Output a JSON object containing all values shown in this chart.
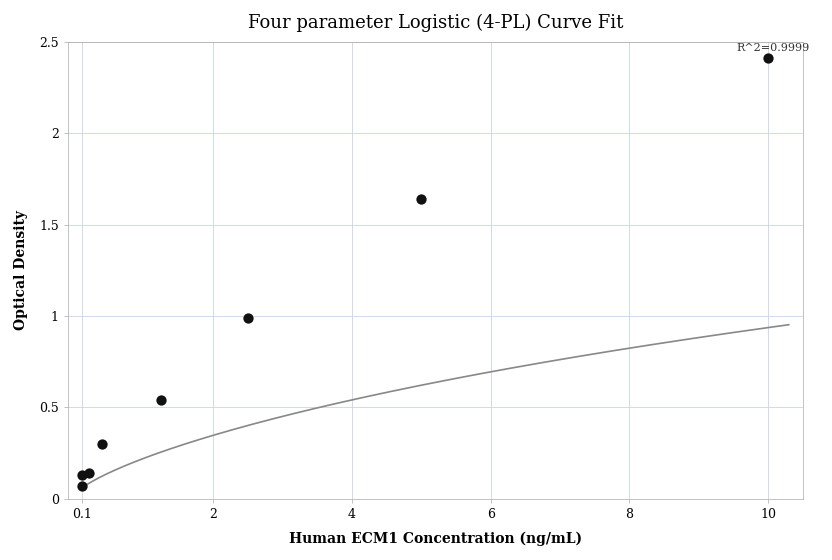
{
  "title": "Four parameter Logistic (4-PL) Curve Fit",
  "xlabel": "Human ECM1 Concentration (ng/mL)",
  "ylabel": "Optical Density",
  "points_x": [
    0.1,
    0.1,
    0.2,
    0.4,
    1.25,
    2.5,
    5.0,
    10.0
  ],
  "points_y": [
    0.07,
    0.13,
    0.14,
    0.3,
    0.54,
    0.99,
    1.64,
    2.41
  ],
  "xlim": [
    -0.1,
    10.5
  ],
  "ylim": [
    0.0,
    2.5
  ],
  "xticks": [
    0.1,
    2,
    4,
    6,
    8,
    10
  ],
  "yticks": [
    0.0,
    0.5,
    1.0,
    1.5,
    2.0,
    2.5
  ],
  "r_squared": "R^2=0.9999",
  "point_color": "#111111",
  "line_color": "#888888",
  "grid_color": "#c8d4e8",
  "title_fontsize": 13,
  "label_fontsize": 10,
  "tick_fontsize": 9,
  "annotation_fontsize": 8,
  "point_size": 55,
  "line_width": 1.2,
  "bg_color": "#ffffff",
  "4pl_A": 0.02,
  "4pl_B": 0.75,
  "4pl_C": 50.0,
  "4pl_D": 4.0
}
